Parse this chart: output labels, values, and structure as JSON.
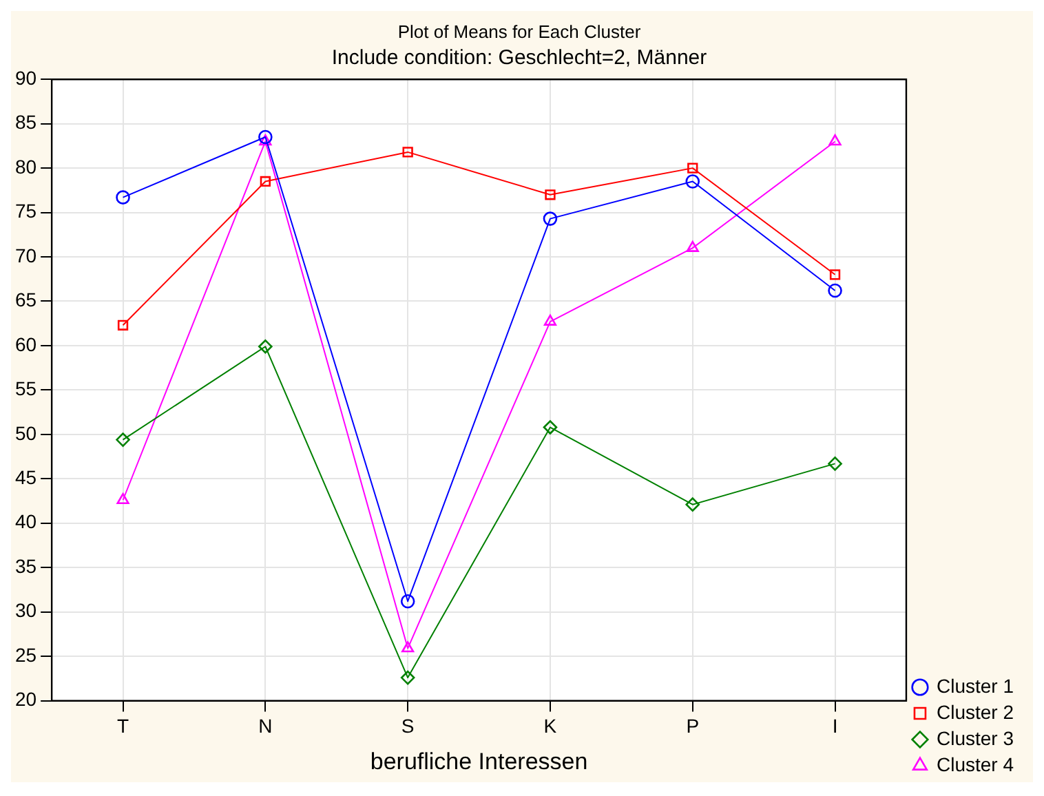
{
  "chart_data": {
    "type": "line",
    "title": "Plot of Means for Each Cluster",
    "subtitle": "Include condition: Geschlecht=2, Männer",
    "xlabel": "berufliche Interessen",
    "categories": [
      "T",
      "N",
      "S",
      "K",
      "P",
      "I"
    ],
    "series": [
      {
        "name": "Cluster 1",
        "color": "#0000ff",
        "marker": "circle",
        "values": [
          76.7,
          83.5,
          31.2,
          74.3,
          78.5,
          66.2
        ]
      },
      {
        "name": "Cluster 2",
        "color": "#ff0000",
        "marker": "square",
        "values": [
          62.3,
          78.5,
          81.8,
          77.0,
          80.0,
          68.0
        ]
      },
      {
        "name": "Cluster 3",
        "color": "#008000",
        "marker": "diamond",
        "values": [
          49.4,
          59.9,
          22.6,
          50.8,
          42.1,
          46.7
        ]
      },
      {
        "name": "Cluster 4",
        "color": "#ff00ff",
        "marker": "triangle",
        "values": [
          42.6,
          83.0,
          25.9,
          62.7,
          71.0,
          83.0
        ]
      }
    ],
    "ylim": [
      20,
      90
    ],
    "yticks": [
      20,
      25,
      30,
      35,
      40,
      45,
      50,
      55,
      60,
      65,
      70,
      75,
      80,
      85,
      90
    ],
    "grid": true,
    "legend": "bottom right",
    "line_style": "solid"
  }
}
